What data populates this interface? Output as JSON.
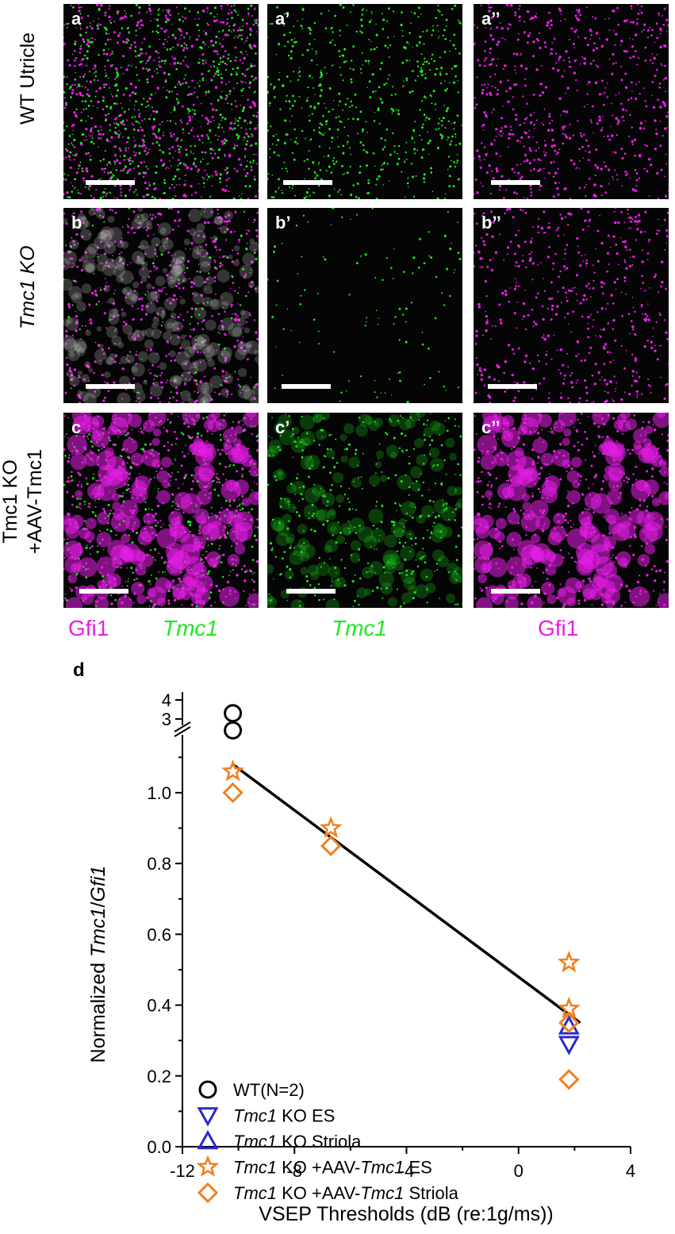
{
  "panels": {
    "row_labels": {
      "a": [
        "WT Utricle"
      ],
      "b": [
        "Tmc1 KO"
      ],
      "c": [
        "Tmc1 KO",
        "+AAV-Tmc1"
      ]
    },
    "labels": {
      "a": "a",
      "a1": "a’",
      "a2": "a’’",
      "b": "b",
      "b1": "b’",
      "b2": "b’’",
      "c": "c",
      "c1": "c’",
      "c2": "c’’"
    },
    "channels": {
      "gfi1": "Gfi1",
      "tmc1": "Tmc1"
    },
    "colors": {
      "magenta": "#e81ee8",
      "green": "#1ee81e",
      "background": "#050505"
    }
  },
  "chart_data": {
    "type": "scatter",
    "panel_label": "d",
    "xlabel": "VSEP Thresholds (dB (re:1g/ms))",
    "ylabel": "Normalized Tmc1/Gfi1",
    "xlim": [
      -12,
      4
    ],
    "ylim": [
      0,
      1.15
    ],
    "broken_axis_upper_ticks": [
      "3",
      "4"
    ],
    "xticks": [
      "-12",
      "-8",
      "-4",
      "0",
      "4"
    ],
    "yticks": [
      "0.0",
      "0.2",
      "0.4",
      "0.6",
      "0.8",
      "1.0"
    ],
    "legend_position": "bottom-left",
    "series": [
      {
        "name": "WT(N=2)",
        "marker": "circle",
        "color": "#000000",
        "points": [
          {
            "x": -10.2,
            "y_upper": 3.6
          },
          {
            "x": -10.2,
            "y_upper": 2.7
          }
        ]
      },
      {
        "name": "Tmc1 KO ES",
        "marker": "triangle-down",
        "color": "#2a2ad0",
        "points": [
          {
            "x": 1.8,
            "y": 0.29
          }
        ]
      },
      {
        "name": "Tmc1 KO Striola",
        "marker": "triangle-up",
        "color": "#2a2ad0",
        "points": [
          {
            "x": 1.8,
            "y": 0.34
          }
        ]
      },
      {
        "name": "Tmc1 KO +AAV-Tmc1 ES",
        "marker": "star",
        "color": "#f08020",
        "points": [
          {
            "x": -10.2,
            "y": 1.06
          },
          {
            "x": -6.7,
            "y": 0.9
          },
          {
            "x": 1.8,
            "y": 0.52
          },
          {
            "x": 1.8,
            "y": 0.39
          }
        ]
      },
      {
        "name": "Tmc1 KO +AAV-Tmc1 Striola",
        "marker": "diamond",
        "color": "#f08020",
        "points": [
          {
            "x": -10.2,
            "y": 1.0
          },
          {
            "x": -6.7,
            "y": 0.85
          },
          {
            "x": 1.8,
            "y": 0.35
          },
          {
            "x": 1.8,
            "y": 0.19
          }
        ]
      }
    ],
    "fit_line": {
      "color": "#000000",
      "x": [
        -10.2,
        2.2
      ],
      "y": [
        1.08,
        0.35
      ]
    }
  }
}
